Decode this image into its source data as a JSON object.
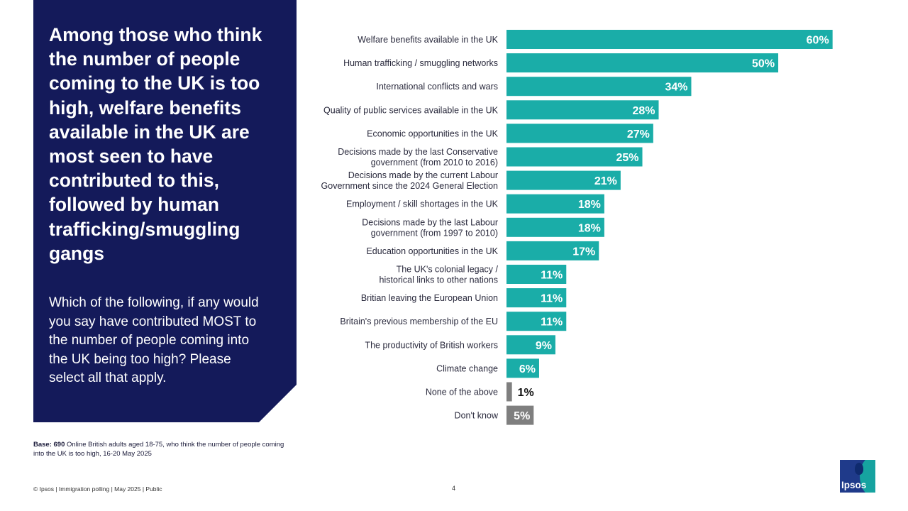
{
  "panel": {
    "title": "Among those who think the number of people coming to the UK is too high, welfare benefits available in the UK are most seen to have contributed to this, followed by human trafficking/smuggling gangs",
    "question": "Which of the following, if any would you say have contributed MOST to the number of people coming into the UK being too high? Please select all that apply."
  },
  "chart_data": {
    "type": "bar",
    "orientation": "horizontal",
    "categories": [
      [
        "Welfare benefits available in the UK"
      ],
      [
        "Human trafficking / smuggling networks"
      ],
      [
        "International conflicts and wars"
      ],
      [
        "Quality of public services available in the UK"
      ],
      [
        "Economic opportunities in the UK"
      ],
      [
        "Decisions made by the last Conservative",
        "government (from 2010 to 2016)"
      ],
      [
        "Decisions made by the current Labour",
        "Government since the 2024 General Election"
      ],
      [
        "Employment / skill shortages in the UK"
      ],
      [
        "Decisions made by the last Labour",
        "government (from 1997 to 2010)"
      ],
      [
        "Education opportunities in the UK"
      ],
      [
        "The UK's colonial legacy /",
        "historical links to other nations"
      ],
      [
        "Britian leaving the European Union"
      ],
      [
        "Britain's previous membership of the EU"
      ],
      [
        "The productivity of British workers"
      ],
      [
        "Climate change"
      ],
      [
        "None of the above"
      ],
      [
        "Don't know"
      ]
    ],
    "values": [
      60,
      50,
      34,
      28,
      27,
      25,
      21,
      18,
      18,
      17,
      11,
      11,
      11,
      9,
      6,
      1,
      5
    ],
    "value_labels": [
      "60%",
      "50%",
      "34%",
      "28%",
      "27%",
      "25%",
      "21%",
      "18%",
      "18%",
      "17%",
      "11%",
      "11%",
      "11%",
      "9%",
      "6%",
      "1%",
      "5%"
    ],
    "bar_colors": [
      "#1aada8",
      "#1aada8",
      "#1aada8",
      "#1aada8",
      "#1aada8",
      "#1aada8",
      "#1aada8",
      "#1aada8",
      "#1aada8",
      "#1aada8",
      "#1aada8",
      "#1aada8",
      "#1aada8",
      "#1aada8",
      "#1aada8",
      "#7f7f7f",
      "#7f7f7f"
    ],
    "xlim": [
      0,
      62
    ],
    "grid": false,
    "legend": "none"
  },
  "base_note": {
    "bold": "Base: 690",
    "text": " Online British adults aged 18-75, who think the number of people coming into the UK is too high, 16-20 May 2025"
  },
  "footer": {
    "left": "© Ipsos | Immigration polling | May 2025 | Public",
    "page": "4"
  },
  "logo": {
    "text": "Ipsos"
  },
  "colors": {
    "panel": "#141a5a",
    "accent": "#1aada8",
    "neutral": "#7f7f7f"
  }
}
